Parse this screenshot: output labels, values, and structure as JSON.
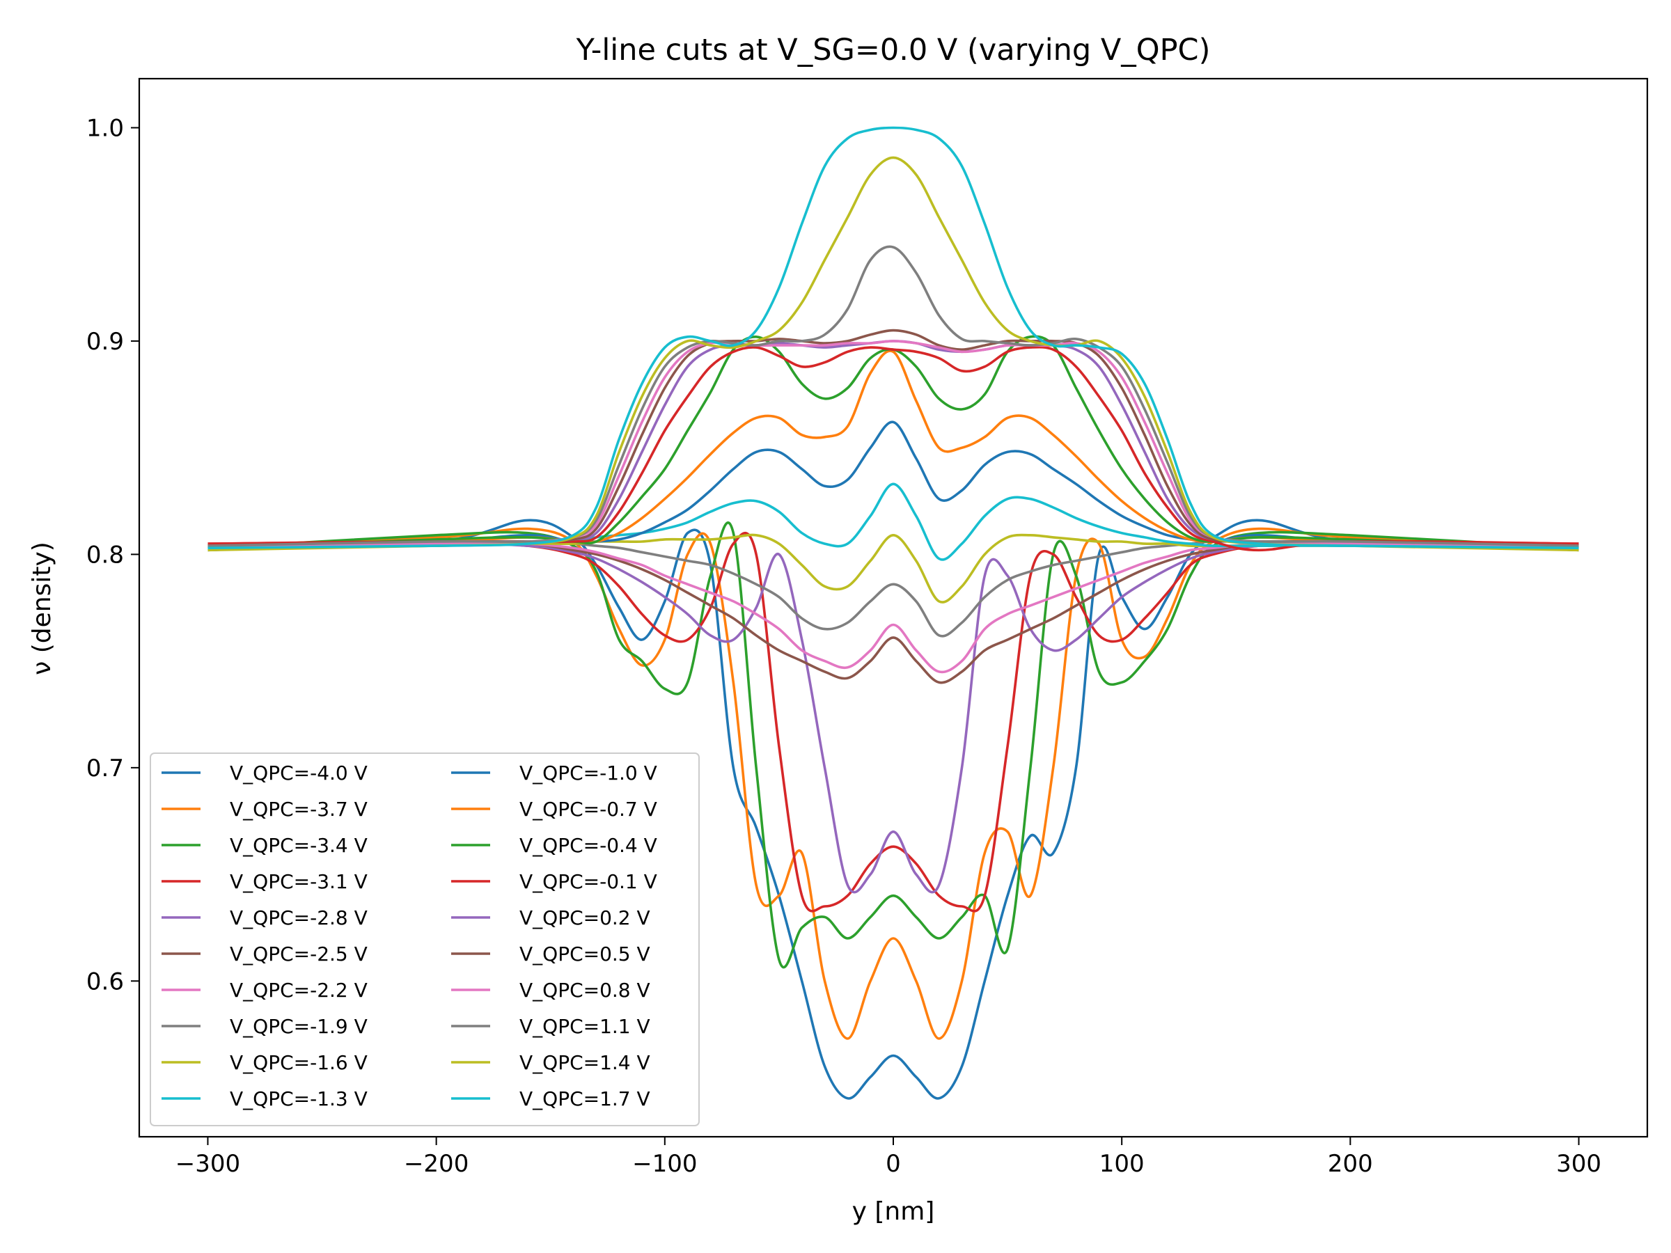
{
  "chart_data": {
    "type": "line",
    "title": "Y-line cuts at V_SG=0.0 V (varying V_QPC)",
    "xlabel": "y [nm]",
    "ylabel": "ν (density)",
    "xlim": [
      -330,
      330
    ],
    "ylim": [
      0.527,
      1.023
    ],
    "xticks": [
      -300,
      -200,
      -100,
      0,
      100,
      200,
      300
    ],
    "xtick_labels": [
      "−300",
      "−200",
      "−100",
      "0",
      "100",
      "200",
      "300"
    ],
    "yticks": [
      0.6,
      0.7,
      0.8,
      0.9,
      1.0
    ],
    "ytick_labels": [
      "0.6",
      "0.7",
      "0.8",
      "0.9",
      "1.0"
    ],
    "grid": false,
    "legend_position": "lower-left",
    "legend_columns": 2,
    "x": [
      -300,
      -200,
      -160,
      -140,
      -130,
      -120,
      -110,
      -100,
      -90,
      -80,
      -70,
      -60,
      -50,
      -40,
      -30,
      -20,
      -10,
      0,
      10,
      20,
      30,
      40,
      50,
      60,
      70,
      80,
      90,
      100,
      110,
      120,
      130,
      140,
      160,
      200,
      300
    ],
    "series": [
      {
        "name": "V_QPC=-4.0 V",
        "color": "#1f77b4",
        "values": [
          0.802,
          0.806,
          0.816,
          0.808,
          0.795,
          0.775,
          0.76,
          0.778,
          0.81,
          0.795,
          0.7,
          0.672,
          0.64,
          0.6,
          0.56,
          0.545,
          0.555,
          0.565,
          0.555,
          0.545,
          0.56,
          0.6,
          0.64,
          0.668,
          0.66,
          0.7,
          0.8,
          0.78,
          0.765,
          0.78,
          0.8,
          0.808,
          0.816,
          0.806,
          0.802
        ]
      },
      {
        "name": "V_QPC=-3.7 V",
        "color": "#ff7f0e",
        "values": [
          0.804,
          0.808,
          0.812,
          0.806,
          0.79,
          0.765,
          0.748,
          0.76,
          0.8,
          0.805,
          0.74,
          0.645,
          0.64,
          0.66,
          0.6,
          0.573,
          0.6,
          0.62,
          0.6,
          0.573,
          0.6,
          0.66,
          0.67,
          0.64,
          0.7,
          0.79,
          0.805,
          0.76,
          0.752,
          0.77,
          0.795,
          0.806,
          0.812,
          0.808,
          0.804
        ]
      },
      {
        "name": "V_QPC=-3.4 V",
        "color": "#2ca02c",
        "values": [
          0.803,
          0.809,
          0.81,
          0.804,
          0.792,
          0.76,
          0.75,
          0.737,
          0.74,
          0.79,
          0.81,
          0.7,
          0.61,
          0.625,
          0.63,
          0.62,
          0.63,
          0.64,
          0.63,
          0.62,
          0.63,
          0.64,
          0.615,
          0.7,
          0.8,
          0.79,
          0.745,
          0.74,
          0.75,
          0.765,
          0.79,
          0.804,
          0.81,
          0.809,
          0.803
        ]
      },
      {
        "name": "V_QPC=-3.1 V",
        "color": "#d62728",
        "values": [
          0.805,
          0.806,
          0.804,
          0.8,
          0.795,
          0.785,
          0.772,
          0.762,
          0.76,
          0.775,
          0.805,
          0.8,
          0.71,
          0.64,
          0.635,
          0.64,
          0.655,
          0.663,
          0.655,
          0.64,
          0.635,
          0.64,
          0.71,
          0.79,
          0.8,
          0.78,
          0.762,
          0.76,
          0.77,
          0.782,
          0.795,
          0.8,
          0.804,
          0.806,
          0.805
        ]
      },
      {
        "name": "V_QPC=-2.8 V",
        "color": "#9467bd",
        "values": [
          0.803,
          0.805,
          0.804,
          0.801,
          0.798,
          0.793,
          0.787,
          0.78,
          0.772,
          0.762,
          0.76,
          0.775,
          0.8,
          0.76,
          0.7,
          0.645,
          0.65,
          0.67,
          0.65,
          0.645,
          0.7,
          0.79,
          0.79,
          0.765,
          0.755,
          0.76,
          0.77,
          0.78,
          0.787,
          0.793,
          0.798,
          0.801,
          0.804,
          0.805,
          0.803
        ]
      },
      {
        "name": "V_QPC=-2.5 V",
        "color": "#8c564b",
        "values": [
          0.804,
          0.806,
          0.805,
          0.802,
          0.8,
          0.797,
          0.793,
          0.788,
          0.782,
          0.776,
          0.77,
          0.762,
          0.755,
          0.75,
          0.745,
          0.742,
          0.75,
          0.761,
          0.75,
          0.74,
          0.745,
          0.755,
          0.76,
          0.765,
          0.77,
          0.776,
          0.782,
          0.788,
          0.793,
          0.797,
          0.8,
          0.802,
          0.805,
          0.806,
          0.804
        ]
      },
      {
        "name": "V_QPC=-2.2 V",
        "color": "#e377c2",
        "values": [
          0.803,
          0.806,
          0.805,
          0.803,
          0.801,
          0.798,
          0.795,
          0.79,
          0.786,
          0.782,
          0.778,
          0.772,
          0.765,
          0.755,
          0.75,
          0.747,
          0.755,
          0.767,
          0.755,
          0.745,
          0.75,
          0.765,
          0.772,
          0.776,
          0.78,
          0.784,
          0.788,
          0.792,
          0.796,
          0.799,
          0.802,
          0.803,
          0.805,
          0.806,
          0.803
        ]
      },
      {
        "name": "V_QPC=-1.9 V",
        "color": "#7f7f7f",
        "values": [
          0.804,
          0.806,
          0.806,
          0.805,
          0.804,
          0.803,
          0.801,
          0.799,
          0.797,
          0.795,
          0.791,
          0.786,
          0.78,
          0.77,
          0.765,
          0.768,
          0.778,
          0.786,
          0.778,
          0.762,
          0.768,
          0.78,
          0.788,
          0.792,
          0.795,
          0.797,
          0.799,
          0.801,
          0.803,
          0.804,
          0.805,
          0.806,
          0.806,
          0.806,
          0.804
        ]
      },
      {
        "name": "V_QPC=-1.6 V",
        "color": "#bcbd22",
        "values": [
          0.803,
          0.804,
          0.805,
          0.805,
          0.806,
          0.806,
          0.806,
          0.807,
          0.807,
          0.807,
          0.808,
          0.809,
          0.805,
          0.795,
          0.785,
          0.785,
          0.797,
          0.809,
          0.797,
          0.778,
          0.785,
          0.8,
          0.808,
          0.809,
          0.808,
          0.807,
          0.806,
          0.806,
          0.805,
          0.805,
          0.804,
          0.804,
          0.804,
          0.804,
          0.803
        ]
      },
      {
        "name": "V_QPC=-1.3 V",
        "color": "#17becf",
        "values": [
          0.803,
          0.804,
          0.806,
          0.806,
          0.808,
          0.809,
          0.81,
          0.812,
          0.815,
          0.82,
          0.824,
          0.825,
          0.82,
          0.81,
          0.805,
          0.805,
          0.818,
          0.833,
          0.818,
          0.798,
          0.805,
          0.818,
          0.826,
          0.826,
          0.822,
          0.817,
          0.813,
          0.81,
          0.808,
          0.806,
          0.805,
          0.804,
          0.804,
          0.804,
          0.803
        ]
      },
      {
        "name": "V_QPC=-1.0 V",
        "color": "#1f77b4",
        "values": [
          0.802,
          0.806,
          0.809,
          0.806,
          0.806,
          0.807,
          0.81,
          0.815,
          0.821,
          0.83,
          0.84,
          0.848,
          0.848,
          0.84,
          0.832,
          0.835,
          0.85,
          0.862,
          0.845,
          0.826,
          0.83,
          0.842,
          0.848,
          0.847,
          0.84,
          0.833,
          0.825,
          0.818,
          0.813,
          0.809,
          0.807,
          0.806,
          0.809,
          0.806,
          0.802
        ]
      },
      {
        "name": "V_QPC=-0.7 V",
        "color": "#ff7f0e",
        "values": [
          0.804,
          0.806,
          0.808,
          0.806,
          0.806,
          0.81,
          0.817,
          0.826,
          0.836,
          0.847,
          0.857,
          0.864,
          0.864,
          0.856,
          0.855,
          0.86,
          0.885,
          0.895,
          0.872,
          0.85,
          0.85,
          0.855,
          0.864,
          0.864,
          0.856,
          0.846,
          0.835,
          0.825,
          0.817,
          0.811,
          0.807,
          0.806,
          0.808,
          0.806,
          0.804
        ]
      },
      {
        "name": "V_QPC=-0.4 V",
        "color": "#2ca02c",
        "values": [
          0.803,
          0.807,
          0.808,
          0.806,
          0.806,
          0.815,
          0.827,
          0.84,
          0.858,
          0.876,
          0.896,
          0.902,
          0.895,
          0.88,
          0.873,
          0.878,
          0.892,
          0.896,
          0.888,
          0.873,
          0.868,
          0.875,
          0.895,
          0.902,
          0.898,
          0.878,
          0.858,
          0.84,
          0.826,
          0.815,
          0.808,
          0.806,
          0.808,
          0.807,
          0.803
        ]
      },
      {
        "name": "V_QPC=-0.1 V",
        "color": "#d62728",
        "values": [
          0.805,
          0.806,
          0.806,
          0.806,
          0.808,
          0.82,
          0.838,
          0.858,
          0.874,
          0.888,
          0.895,
          0.897,
          0.893,
          0.888,
          0.89,
          0.895,
          0.897,
          0.896,
          0.895,
          0.892,
          0.886,
          0.888,
          0.895,
          0.897,
          0.896,
          0.888,
          0.874,
          0.858,
          0.838,
          0.822,
          0.81,
          0.806,
          0.802,
          0.806,
          0.805
        ]
      },
      {
        "name": "V_QPC=0.2 V",
        "color": "#9467bd",
        "values": [
          0.803,
          0.805,
          0.806,
          0.807,
          0.81,
          0.826,
          0.848,
          0.87,
          0.888,
          0.896,
          0.898,
          0.898,
          0.899,
          0.898,
          0.897,
          0.898,
          0.899,
          0.9,
          0.899,
          0.896,
          0.895,
          0.896,
          0.898,
          0.898,
          0.898,
          0.896,
          0.888,
          0.87,
          0.848,
          0.826,
          0.812,
          0.807,
          0.806,
          0.805,
          0.803
        ]
      },
      {
        "name": "V_QPC=0.5 V",
        "color": "#8c564b",
        "values": [
          0.804,
          0.806,
          0.806,
          0.807,
          0.812,
          0.832,
          0.856,
          0.878,
          0.893,
          0.899,
          0.9,
          0.9,
          0.901,
          0.9,
          0.899,
          0.9,
          0.903,
          0.905,
          0.903,
          0.898,
          0.896,
          0.898,
          0.9,
          0.9,
          0.9,
          0.899,
          0.893,
          0.878,
          0.856,
          0.832,
          0.814,
          0.807,
          0.806,
          0.806,
          0.804
        ]
      },
      {
        "name": "V_QPC=0.8 V",
        "color": "#e377c2",
        "values": [
          0.803,
          0.805,
          0.806,
          0.808,
          0.814,
          0.837,
          0.862,
          0.883,
          0.895,
          0.899,
          0.899,
          0.898,
          0.898,
          0.898,
          0.898,
          0.899,
          0.899,
          0.9,
          0.899,
          0.897,
          0.895,
          0.896,
          0.898,
          0.898,
          0.898,
          0.899,
          0.895,
          0.883,
          0.862,
          0.838,
          0.816,
          0.808,
          0.806,
          0.805,
          0.803
        ]
      },
      {
        "name": "V_QPC=1.1 V",
        "color": "#7f7f7f",
        "values": [
          0.804,
          0.806,
          0.806,
          0.808,
          0.816,
          0.842,
          0.868,
          0.888,
          0.897,
          0.9,
          0.899,
          0.898,
          0.9,
          0.9,
          0.903,
          0.915,
          0.938,
          0.944,
          0.932,
          0.912,
          0.901,
          0.9,
          0.899,
          0.898,
          0.899,
          0.901,
          0.897,
          0.888,
          0.868,
          0.843,
          0.818,
          0.808,
          0.806,
          0.806,
          0.804
        ]
      },
      {
        "name": "V_QPC=1.4 V",
        "color": "#bcbd22",
        "values": [
          0.802,
          0.804,
          0.805,
          0.808,
          0.818,
          0.848,
          0.874,
          0.892,
          0.9,
          0.898,
          0.897,
          0.9,
          0.905,
          0.918,
          0.938,
          0.958,
          0.978,
          0.986,
          0.978,
          0.958,
          0.938,
          0.918,
          0.905,
          0.9,
          0.898,
          0.898,
          0.9,
          0.892,
          0.874,
          0.848,
          0.82,
          0.808,
          0.805,
          0.804,
          0.802
        ]
      },
      {
        "name": "V_QPC=1.7 V",
        "color": "#17becf",
        "values": [
          0.803,
          0.804,
          0.805,
          0.809,
          0.822,
          0.854,
          0.88,
          0.897,
          0.902,
          0.9,
          0.898,
          0.905,
          0.925,
          0.955,
          0.982,
          0.995,
          0.999,
          1.0,
          0.999,
          0.995,
          0.982,
          0.955,
          0.925,
          0.905,
          0.898,
          0.898,
          0.897,
          0.894,
          0.88,
          0.854,
          0.824,
          0.809,
          0.805,
          0.804,
          0.803
        ]
      }
    ]
  }
}
